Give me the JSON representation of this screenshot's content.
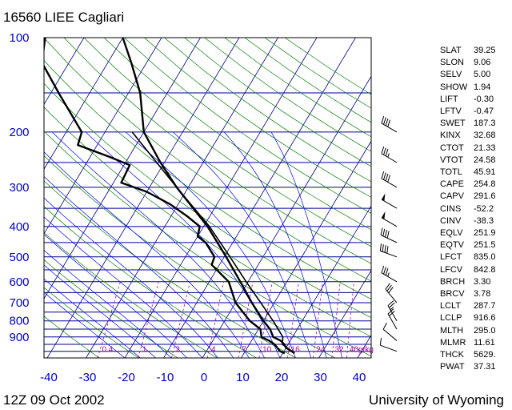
{
  "header": {
    "title": "16560 LIEE Cagliari"
  },
  "footer": {
    "time": "12Z 09 Oct 2002",
    "credit": "University of Wyoming"
  },
  "colors": {
    "isobar": "#00008b",
    "isotherm": "#00008b",
    "dry_adiabat": "#008000",
    "moist_adiabat": "#0000ff",
    "mixing_ratio": "#aa00aa",
    "trace": "#000000",
    "axis_text": "#0000cd"
  },
  "chart_data": {
    "type": "skew-t log-p sounding",
    "title": "16560 LIEE Cagliari",
    "xlabel": "",
    "ylabel": "",
    "xlim": [
      -40,
      45
    ],
    "ylim_hpa": [
      1050,
      100
    ],
    "y_scale": "log",
    "x_ticks": [
      "-40",
      "-30",
      "-20",
      "-10",
      "0",
      "10",
      "20",
      "30",
      "40"
    ],
    "pressure_ticks": [
      "100",
      "200",
      "300",
      "400",
      "500",
      "600",
      "700",
      "800",
      "900"
    ],
    "mixing_ratio_labels": [
      "0.4",
      "1",
      "2",
      "4",
      "7",
      "10",
      "16",
      "24",
      "32",
      "40g/kg"
    ],
    "temperature_profile": [
      {
        "p": 1015,
        "t": 23.0
      },
      {
        "p": 1000,
        "t": 22.0
      },
      {
        "p": 975,
        "t": 20.0
      },
      {
        "p": 950,
        "t": 19.0
      },
      {
        "p": 925,
        "t": 17.5
      },
      {
        "p": 900,
        "t": 15.0
      },
      {
        "p": 850,
        "t": 13.0
      },
      {
        "p": 800,
        "t": 10.0
      },
      {
        "p": 700,
        "t": 4.2
      },
      {
        "p": 600,
        "t": -2.0
      },
      {
        "p": 500,
        "t": -9.5
      },
      {
        "p": 400,
        "t": -19.0
      },
      {
        "p": 300,
        "t": -33.0
      },
      {
        "p": 250,
        "t": -41.0
      },
      {
        "p": 200,
        "t": -50.0
      },
      {
        "p": 150,
        "t": -57.0
      },
      {
        "p": 120,
        "t": -64.0
      },
      {
        "p": 100,
        "t": -70.0
      }
    ],
    "dewpoint_profile": [
      {
        "p": 1015,
        "t": 20.5
      },
      {
        "p": 1000,
        "t": 19.0
      },
      {
        "p": 950,
        "t": 16.5
      },
      {
        "p": 925,
        "t": 14.5
      },
      {
        "p": 900,
        "t": 12.0
      },
      {
        "p": 850,
        "t": 10.5
      },
      {
        "p": 800,
        "t": 6.5
      },
      {
        "p": 700,
        "t": 0.0
      },
      {
        "p": 600,
        "t": -5.0
      },
      {
        "p": 530,
        "t": -12.0
      },
      {
        "p": 500,
        "t": -12.5
      },
      {
        "p": 450,
        "t": -17.0
      },
      {
        "p": 430,
        "t": -20.0
      },
      {
        "p": 400,
        "t": -21.0
      },
      {
        "p": 370,
        "t": -26.0
      },
      {
        "p": 340,
        "t": -32.0
      },
      {
        "p": 310,
        "t": -40.0
      },
      {
        "p": 290,
        "t": -48.0
      },
      {
        "p": 255,
        "t": -48.5
      },
      {
        "p": 240,
        "t": -55.0
      },
      {
        "p": 220,
        "t": -65.0
      },
      {
        "p": 200,
        "t": -66.0
      },
      {
        "p": 150,
        "t": -78.0
      },
      {
        "p": 120,
        "t": -87.0
      },
      {
        "p": 100,
        "t": -90.0
      }
    ],
    "parcel_profile": [
      {
        "p": 1015,
        "t": 23.0
      },
      {
        "p": 950,
        "t": 18.5
      },
      {
        "p": 900,
        "t": 17.5
      },
      {
        "p": 800,
        "t": 12.5
      },
      {
        "p": 700,
        "t": 6.5
      },
      {
        "p": 600,
        "t": -0.5
      },
      {
        "p": 500,
        "t": -8.5
      },
      {
        "p": 400,
        "t": -18.5
      },
      {
        "p": 300,
        "t": -33.0
      },
      {
        "p": 250,
        "t": -42.0
      },
      {
        "p": 200,
        "t": -53.0
      }
    ],
    "wind_barbs": [
      {
        "p": 1000,
        "dir": 290,
        "spd": 10
      },
      {
        "p": 925,
        "dir": 310,
        "spd": 10
      },
      {
        "p": 850,
        "dir": 330,
        "spd": 20
      },
      {
        "p": 800,
        "dir": 330,
        "spd": 25
      },
      {
        "p": 700,
        "dir": 320,
        "spd": 30
      },
      {
        "p": 600,
        "dir": 300,
        "spd": 35
      },
      {
        "p": 500,
        "dir": 290,
        "spd": 40
      },
      {
        "p": 450,
        "dir": 295,
        "spd": 40
      },
      {
        "p": 400,
        "dir": 300,
        "spd": 50
      },
      {
        "p": 350,
        "dir": 300,
        "spd": 50
      },
      {
        "p": 300,
        "dir": 300,
        "spd": 40
      },
      {
        "p": 250,
        "dir": 300,
        "spd": 35
      },
      {
        "p": 200,
        "dir": 300,
        "spd": 40
      }
    ],
    "indices": [
      {
        "name": "SLAT",
        "value": "39.25"
      },
      {
        "name": "SLON",
        "value": "9.06"
      },
      {
        "name": "SELV",
        "value": "5.00"
      },
      {
        "name": "SHOW",
        "value": "1.94"
      },
      {
        "name": "LIFT",
        "value": "-0.30"
      },
      {
        "name": "LFTV",
        "value": "-0.47"
      },
      {
        "name": "SWET",
        "value": "187.3"
      },
      {
        "name": "KINX",
        "value": "32.68"
      },
      {
        "name": "CTOT",
        "value": "21.33"
      },
      {
        "name": "VTOT",
        "value": "24.58"
      },
      {
        "name": "TOTL",
        "value": "45.91"
      },
      {
        "name": "CAPE",
        "value": "254.8"
      },
      {
        "name": "CAPV",
        "value": "291.6"
      },
      {
        "name": "CINS",
        "value": "-52.2"
      },
      {
        "name": "CINV",
        "value": "-38.3"
      },
      {
        "name": "EQLV",
        "value": "251.9"
      },
      {
        "name": "EQTV",
        "value": "251.5"
      },
      {
        "name": "LFCT",
        "value": "835.0"
      },
      {
        "name": "LFCV",
        "value": "842.8"
      },
      {
        "name": "BRCH",
        "value": "3.30"
      },
      {
        "name": "BRCV",
        "value": "3.78"
      },
      {
        "name": "LCLT",
        "value": "287.7"
      },
      {
        "name": "LCLP",
        "value": "916.6"
      },
      {
        "name": "MLTH",
        "value": "295.0"
      },
      {
        "name": "MLMR",
        "value": "11.61"
      },
      {
        "name": "THCK",
        "value": "5629."
      },
      {
        "name": "PWAT",
        "value": "37.31"
      }
    ]
  }
}
